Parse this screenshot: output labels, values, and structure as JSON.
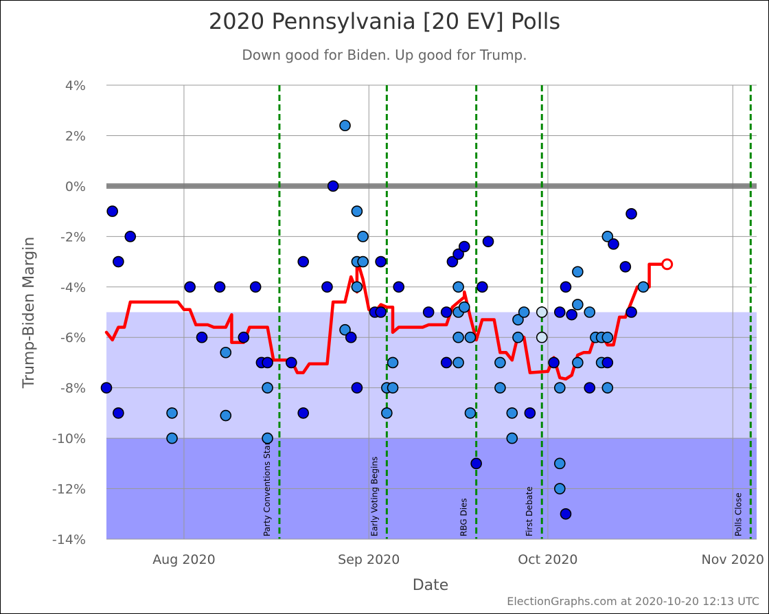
{
  "chart_data": {
    "type": "scatter",
    "title": "2020 Pennsylvania [20 EV] Polls",
    "subtitle": "Down good for Biden. Up good for Trump.",
    "xlabel": "Date",
    "ylabel": "Trump-Biden Margin",
    "credit": "ElectionGraphs.com at 2020-10-20 12:13 UTC",
    "ylim": [
      -14,
      4
    ],
    "xlim": [
      "2020-07-18",
      "2020-11-04"
    ],
    "yticks": [
      4,
      2,
      0,
      -2,
      -4,
      -6,
      -8,
      -10,
      -12,
      -14
    ],
    "ytick_labels": [
      "4%",
      "2%",
      "0%",
      "-2%",
      "-4%",
      "-6%",
      "-8%",
      "-10%",
      "-12%",
      "-14%"
    ],
    "xticks": [
      {
        "date": "2020-07-31",
        "label": "Aug 2020"
      },
      {
        "date": "2020-08-31",
        "label": "Sep 2020"
      },
      {
        "date": "2020-09-30",
        "label": "Oct 2020"
      },
      {
        "date": "2020-10-31",
        "label": "Nov 2020"
      }
    ],
    "grid": true,
    "bands": [
      {
        "from": -10,
        "to": -5,
        "color": "#ccccff"
      },
      {
        "from": -14,
        "to": -10,
        "color": "#9999ff"
      }
    ],
    "zero_line_color": "#777777",
    "events": [
      {
        "date": "2020-08-16",
        "label": "Party Conventions Start"
      },
      {
        "date": "2020-09-03",
        "label": "Early Voting Begins"
      },
      {
        "date": "2020-09-18",
        "label": "RBG Dies"
      },
      {
        "date": "2020-09-29",
        "label": "First Debate"
      },
      {
        "date": "2020-11-03",
        "label": "Polls Close"
      }
    ],
    "event_color": "#008800",
    "point_colors": {
      "dark": "#0000dd",
      "medium": "#2a8ae0",
      "light": "#cfe4f5"
    },
    "polls": [
      {
        "x": "2020-07-18",
        "y": -8,
        "shade": "dark"
      },
      {
        "x": "2020-07-19",
        "y": -1,
        "shade": "dark"
      },
      {
        "x": "2020-07-20",
        "y": -3,
        "shade": "dark"
      },
      {
        "x": "2020-07-20",
        "y": -9,
        "shade": "dark"
      },
      {
        "x": "2020-07-22",
        "y": -2,
        "shade": "dark"
      },
      {
        "x": "2020-07-29",
        "y": -9,
        "shade": "medium"
      },
      {
        "x": "2020-07-29",
        "y": -10,
        "shade": "medium"
      },
      {
        "x": "2020-08-01",
        "y": -4,
        "shade": "dark"
      },
      {
        "x": "2020-08-03",
        "y": -6,
        "shade": "dark"
      },
      {
        "x": "2020-08-06",
        "y": -4,
        "shade": "dark"
      },
      {
        "x": "2020-08-07",
        "y": -6.6,
        "shade": "medium"
      },
      {
        "x": "2020-08-07",
        "y": -9.1,
        "shade": "medium"
      },
      {
        "x": "2020-08-10",
        "y": -6,
        "shade": "dark"
      },
      {
        "x": "2020-08-12",
        "y": -4,
        "shade": "dark"
      },
      {
        "x": "2020-08-13",
        "y": -7,
        "shade": "dark"
      },
      {
        "x": "2020-08-14",
        "y": -7,
        "shade": "dark"
      },
      {
        "x": "2020-08-14",
        "y": -8,
        "shade": "medium"
      },
      {
        "x": "2020-08-14",
        "y": -10,
        "shade": "medium"
      },
      {
        "x": "2020-08-18",
        "y": -7,
        "shade": "dark"
      },
      {
        "x": "2020-08-20",
        "y": -3,
        "shade": "dark"
      },
      {
        "x": "2020-08-20",
        "y": -9,
        "shade": "dark"
      },
      {
        "x": "2020-08-24",
        "y": -4,
        "shade": "dark"
      },
      {
        "x": "2020-08-25",
        "y": 0,
        "shade": "dark"
      },
      {
        "x": "2020-08-27",
        "y": 2.4,
        "shade": "medium"
      },
      {
        "x": "2020-08-27",
        "y": -5.7,
        "shade": "medium"
      },
      {
        "x": "2020-08-28",
        "y": -6,
        "shade": "dark"
      },
      {
        "x": "2020-08-29",
        "y": -1,
        "shade": "medium"
      },
      {
        "x": "2020-08-29",
        "y": -3,
        "shade": "medium"
      },
      {
        "x": "2020-08-29",
        "y": -4,
        "shade": "medium"
      },
      {
        "x": "2020-08-29",
        "y": -8,
        "shade": "dark"
      },
      {
        "x": "2020-08-30",
        "y": -2,
        "shade": "medium"
      },
      {
        "x": "2020-08-30",
        "y": -3,
        "shade": "medium"
      },
      {
        "x": "2020-09-01",
        "y": -5,
        "shade": "dark"
      },
      {
        "x": "2020-09-02",
        "y": -3,
        "shade": "dark"
      },
      {
        "x": "2020-09-02",
        "y": -5,
        "shade": "dark"
      },
      {
        "x": "2020-09-03",
        "y": -8,
        "shade": "medium"
      },
      {
        "x": "2020-09-03",
        "y": -9,
        "shade": "medium"
      },
      {
        "x": "2020-09-04",
        "y": -7,
        "shade": "medium"
      },
      {
        "x": "2020-09-04",
        "y": -8,
        "shade": "medium"
      },
      {
        "x": "2020-09-05",
        "y": -4,
        "shade": "dark"
      },
      {
        "x": "2020-09-10",
        "y": -5,
        "shade": "dark"
      },
      {
        "x": "2020-09-13",
        "y": -7,
        "shade": "dark"
      },
      {
        "x": "2020-09-13",
        "y": -5,
        "shade": "dark"
      },
      {
        "x": "2020-09-14",
        "y": -3,
        "shade": "dark"
      },
      {
        "x": "2020-09-15",
        "y": -2.7,
        "shade": "dark"
      },
      {
        "x": "2020-09-15",
        "y": -4,
        "shade": "medium"
      },
      {
        "x": "2020-09-15",
        "y": -5,
        "shade": "medium"
      },
      {
        "x": "2020-09-15",
        "y": -6,
        "shade": "medium"
      },
      {
        "x": "2020-09-15",
        "y": -7,
        "shade": "medium"
      },
      {
        "x": "2020-09-16",
        "y": -2.4,
        "shade": "dark"
      },
      {
        "x": "2020-09-16",
        "y": -4.8,
        "shade": "medium"
      },
      {
        "x": "2020-09-17",
        "y": -6,
        "shade": "medium"
      },
      {
        "x": "2020-09-17",
        "y": -9,
        "shade": "medium"
      },
      {
        "x": "2020-09-18",
        "y": -11,
        "shade": "dark"
      },
      {
        "x": "2020-09-19",
        "y": -4,
        "shade": "dark"
      },
      {
        "x": "2020-09-20",
        "y": -2.2,
        "shade": "dark"
      },
      {
        "x": "2020-09-22",
        "y": -7,
        "shade": "medium"
      },
      {
        "x": "2020-09-22",
        "y": -8,
        "shade": "medium"
      },
      {
        "x": "2020-09-24",
        "y": -9,
        "shade": "medium"
      },
      {
        "x": "2020-09-24",
        "y": -10,
        "shade": "medium"
      },
      {
        "x": "2020-09-25",
        "y": -6,
        "shade": "medium"
      },
      {
        "x": "2020-09-25",
        "y": -5.3,
        "shade": "medium"
      },
      {
        "x": "2020-09-26",
        "y": -5,
        "shade": "medium"
      },
      {
        "x": "2020-09-27",
        "y": -9,
        "shade": "dark"
      },
      {
        "x": "2020-09-29",
        "y": -5,
        "shade": "light"
      },
      {
        "x": "2020-09-29",
        "y": -6,
        "shade": "light"
      },
      {
        "x": "2020-10-01",
        "y": -7,
        "shade": "dark"
      },
      {
        "x": "2020-10-02",
        "y": -5,
        "shade": "dark"
      },
      {
        "x": "2020-10-02",
        "y": -8,
        "shade": "medium"
      },
      {
        "x": "2020-10-02",
        "y": -11,
        "shade": "medium"
      },
      {
        "x": "2020-10-02",
        "y": -12,
        "shade": "medium"
      },
      {
        "x": "2020-10-03",
        "y": -13,
        "shade": "dark"
      },
      {
        "x": "2020-10-03",
        "y": -4,
        "shade": "dark"
      },
      {
        "x": "2020-10-04",
        "y": -5.1,
        "shade": "dark"
      },
      {
        "x": "2020-10-05",
        "y": -3.4,
        "shade": "medium"
      },
      {
        "x": "2020-10-05",
        "y": -4.7,
        "shade": "medium"
      },
      {
        "x": "2020-10-05",
        "y": -7,
        "shade": "medium"
      },
      {
        "x": "2020-10-07",
        "y": -8,
        "shade": "dark"
      },
      {
        "x": "2020-10-07",
        "y": -5,
        "shade": "medium"
      },
      {
        "x": "2020-10-08",
        "y": -6,
        "shade": "medium"
      },
      {
        "x": "2020-10-09",
        "y": -7,
        "shade": "medium"
      },
      {
        "x": "2020-10-09",
        "y": -6,
        "shade": "medium"
      },
      {
        "x": "2020-10-10",
        "y": -2,
        "shade": "medium"
      },
      {
        "x": "2020-10-10",
        "y": -6,
        "shade": "medium"
      },
      {
        "x": "2020-10-10",
        "y": -7,
        "shade": "dark"
      },
      {
        "x": "2020-10-10",
        "y": -8,
        "shade": "medium"
      },
      {
        "x": "2020-10-11",
        "y": -2.3,
        "shade": "dark"
      },
      {
        "x": "2020-10-13",
        "y": -3.2,
        "shade": "dark"
      },
      {
        "x": "2020-10-14",
        "y": -5,
        "shade": "dark"
      },
      {
        "x": "2020-10-14",
        "y": -1.1,
        "shade": "dark"
      },
      {
        "x": "2020-10-16",
        "y": -4,
        "shade": "medium"
      }
    ],
    "average": [
      [
        "2020-07-18",
        -5.8
      ],
      [
        "2020-07-19",
        -6.1
      ],
      [
        "2020-07-20",
        -5.6
      ],
      [
        "2020-07-21",
        -5.6
      ],
      [
        "2020-07-22",
        -4.6
      ],
      [
        "2020-07-30",
        -4.6
      ],
      [
        "2020-07-31",
        -4.9
      ],
      [
        "2020-08-01",
        -4.9
      ],
      [
        "2020-08-02",
        -5.5
      ],
      [
        "2020-08-04",
        -5.5
      ],
      [
        "2020-08-05",
        -5.6
      ],
      [
        "2020-08-07",
        -5.6
      ],
      [
        "2020-08-08",
        -5.1
      ],
      [
        "2020-08-08",
        -6.2
      ],
      [
        "2020-08-10",
        -6.2
      ],
      [
        "2020-08-11",
        -5.6
      ],
      [
        "2020-08-14",
        -5.6
      ],
      [
        "2020-08-15",
        -6.9
      ],
      [
        "2020-08-18",
        -6.9
      ],
      [
        "2020-08-19",
        -7.4
      ],
      [
        "2020-08-20",
        -7.4
      ],
      [
        "2020-08-21",
        -7.05
      ],
      [
        "2020-08-24",
        -7.05
      ],
      [
        "2020-08-25",
        -4.6
      ],
      [
        "2020-08-27",
        -4.6
      ],
      [
        "2020-08-28",
        -3.6
      ],
      [
        "2020-08-29",
        -4.2
      ],
      [
        "2020-08-29",
        -2.9
      ],
      [
        "2020-08-30",
        -3.7
      ],
      [
        "2020-08-31",
        -4.9
      ],
      [
        "2020-09-01",
        -5.0
      ],
      [
        "2020-09-02",
        -4.7
      ],
      [
        "2020-09-03",
        -4.8
      ],
      [
        "2020-09-04",
        -4.8
      ],
      [
        "2020-09-04",
        -5.8
      ],
      [
        "2020-09-05",
        -5.6
      ],
      [
        "2020-09-09",
        -5.6
      ],
      [
        "2020-09-10",
        -5.5
      ],
      [
        "2020-09-13",
        -5.5
      ],
      [
        "2020-09-14",
        -4.8
      ],
      [
        "2020-09-15",
        -4.6
      ],
      [
        "2020-09-16",
        -4.4
      ],
      [
        "2020-09-16",
        -4.2
      ],
      [
        "2020-09-17",
        -5.2
      ],
      [
        "2020-09-18",
        -6.1
      ],
      [
        "2020-09-19",
        -5.3
      ],
      [
        "2020-09-21",
        -5.3
      ],
      [
        "2020-09-22",
        -6.6
      ],
      [
        "2020-09-23",
        -6.6
      ],
      [
        "2020-09-24",
        -6.9
      ],
      [
        "2020-09-25",
        -5.9
      ],
      [
        "2020-09-26",
        -6.0
      ],
      [
        "2020-09-27",
        -7.4
      ],
      [
        "2020-09-30",
        -7.35
      ],
      [
        "2020-10-01",
        -6.8
      ],
      [
        "2020-10-02",
        -7.6
      ],
      [
        "2020-10-03",
        -7.65
      ],
      [
        "2020-10-04",
        -7.5
      ],
      [
        "2020-10-05",
        -6.7
      ],
      [
        "2020-10-06",
        -6.6
      ],
      [
        "2020-10-07",
        -6.6
      ],
      [
        "2020-10-08",
        -5.9
      ],
      [
        "2020-10-09",
        -5.9
      ],
      [
        "2020-10-10",
        -6.3
      ],
      [
        "2020-10-11",
        -6.3
      ],
      [
        "2020-10-12",
        -5.2
      ],
      [
        "2020-10-13",
        -5.2
      ],
      [
        "2020-10-14",
        -4.6
      ],
      [
        "2020-10-15",
        -4.0
      ],
      [
        "2020-10-17",
        -4.0
      ],
      [
        "2020-10-17",
        -3.1
      ],
      [
        "2020-10-20",
        -3.1
      ]
    ],
    "average_color": "#ff0000",
    "average_end": {
      "x": "2020-10-20",
      "y": -3.1
    }
  }
}
